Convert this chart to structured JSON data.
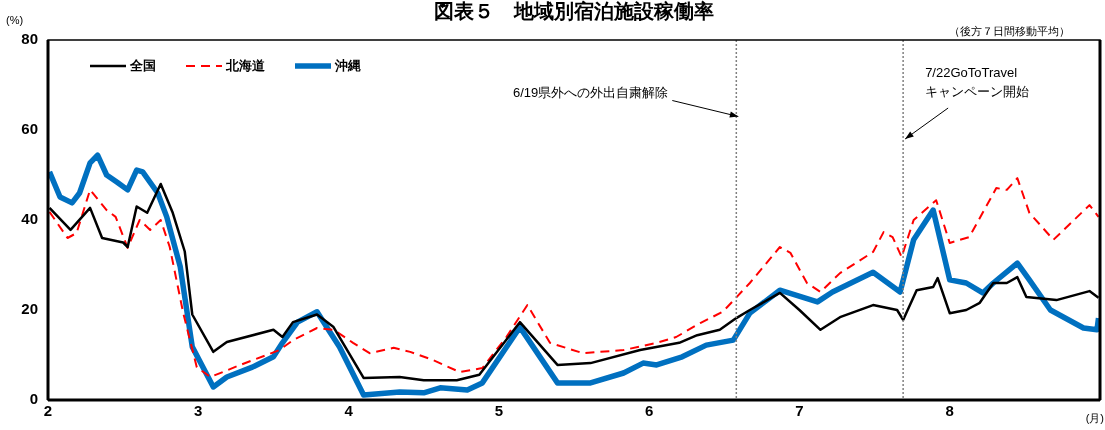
{
  "chart_data": {
    "type": "line",
    "title": "図表５　地域別宿泊施設稼働率",
    "ylabel": "(%)",
    "xlabel": "(月)",
    "xlim": [
      2,
      9
    ],
    "xticks": [
      2,
      3,
      4,
      5,
      6,
      7,
      8
    ],
    "ylim": [
      0,
      80
    ],
    "yticks": [
      0,
      20,
      40,
      60,
      80
    ],
    "grid": false,
    "legend": "top left",
    "marker": "none",
    "series": [
      {
        "name": "全国",
        "color": "#000000",
        "line_style": "solid",
        "x": [
          2.01,
          2.15,
          2.28,
          2.36,
          2.5,
          2.53,
          2.59,
          2.66,
          2.75,
          2.83,
          2.91,
          2.96,
          3.1,
          3.19,
          3.5,
          3.56,
          3.63,
          3.79,
          3.9,
          4.1,
          4.34,
          4.5,
          4.72,
          4.87,
          5.14,
          5.39,
          5.61,
          5.94,
          6.2,
          6.32,
          6.47,
          6.58,
          6.67,
          6.87,
          7.0,
          7.14,
          7.27,
          7.49,
          7.65,
          7.69,
          7.78,
          7.89,
          7.92,
          8.0,
          8.11,
          8.2,
          8.29,
          8.38,
          8.45,
          8.51,
          8.71,
          8.93,
          8.99
        ],
        "values": [
          42.7,
          37.8,
          42.7,
          36,
          35,
          34,
          43,
          41.6,
          48,
          41.6,
          33,
          19,
          10.7,
          12.9,
          15.6,
          14,
          17.3,
          19,
          16.2,
          4.9,
          5.1,
          4.4,
          4.4,
          5.6,
          17.3,
          7.8,
          8.2,
          11.1,
          12.7,
          14.4,
          15.6,
          18.2,
          20,
          23.8,
          20,
          15.6,
          18.4,
          21.1,
          20,
          17.8,
          24.4,
          25.1,
          27.1,
          19.3,
          20,
          21.6,
          26,
          26,
          27.3,
          22.9,
          22.2,
          24.2,
          22.7
        ]
      },
      {
        "name": "北海道",
        "color": "#ff0000",
        "line_style": "dashed",
        "x": [
          2.01,
          2.13,
          2.19,
          2.28,
          2.39,
          2.45,
          2.53,
          2.61,
          2.68,
          2.75,
          2.81,
          2.9,
          2.99,
          3.08,
          3.28,
          3.54,
          3.63,
          3.79,
          3.9,
          4.03,
          4.14,
          4.3,
          4.41,
          4.56,
          4.74,
          4.89,
          5.05,
          5.19,
          5.34,
          5.56,
          5.83,
          6.05,
          6.18,
          6.34,
          6.49,
          6.67,
          6.87,
          6.94,
          7.05,
          7.14,
          7.27,
          7.49,
          7.56,
          7.62,
          7.68,
          7.76,
          7.91,
          8.0,
          8.13,
          8.31,
          8.38,
          8.45,
          8.53,
          8.69,
          8.93,
          8.99
        ],
        "values": [
          41.8,
          36,
          37.1,
          46.7,
          42.2,
          40.7,
          33.8,
          40,
          37.8,
          40,
          34,
          19.3,
          7.3,
          5.1,
          7.8,
          11.1,
          13.3,
          16,
          15.6,
          12.7,
          10.4,
          11.6,
          10.7,
          8.9,
          6.2,
          7.1,
          14,
          21.1,
          12.7,
          10.4,
          11.1,
          12.7,
          14,
          17.1,
          19.6,
          26,
          34,
          32.7,
          26,
          24,
          28.2,
          32.9,
          37.3,
          36.2,
          31.8,
          40,
          44.4,
          34.9,
          36.2,
          47.1,
          46.7,
          49.3,
          41.6,
          35.6,
          43.3,
          40.7
        ]
      },
      {
        "name": "沖縄",
        "color": "#0070c0",
        "line_style": "solid",
        "x": [
          2.01,
          2.08,
          2.16,
          2.21,
          2.28,
          2.33,
          2.39,
          2.46,
          2.53,
          2.59,
          2.63,
          2.73,
          2.79,
          2.88,
          2.96,
          3.1,
          3.19,
          3.36,
          3.5,
          3.56,
          3.66,
          3.79,
          3.88,
          3.94,
          4.1,
          4.34,
          4.5,
          4.61,
          4.79,
          4.89,
          5.14,
          5.39,
          5.61,
          5.83,
          5.96,
          6.05,
          6.22,
          6.38,
          6.56,
          6.67,
          6.87,
          7.12,
          7.22,
          7.49,
          7.67,
          7.76,
          7.89,
          8.0,
          8.11,
          8.22,
          8.29,
          8.45,
          8.53,
          8.67,
          8.89,
          8.98,
          8.99
        ],
        "values": [
          50.7,
          45.1,
          43.8,
          46,
          52.7,
          54.4,
          50,
          48.4,
          46.7,
          51.1,
          50.7,
          46,
          40.7,
          29.6,
          11.8,
          2.9,
          5.1,
          7.3,
          9.6,
          12.7,
          17.3,
          19.6,
          14.9,
          11.8,
          1.1,
          1.8,
          1.6,
          2.7,
          2.2,
          3.8,
          16.2,
          3.8,
          3.8,
          6,
          8.2,
          7.8,
          9.6,
          12.2,
          13.3,
          19.3,
          24.4,
          21.8,
          24,
          28.4,
          24,
          35.6,
          42.2,
          26.7,
          26,
          23.8,
          26,
          30.4,
          26.7,
          20,
          16,
          15.6,
          18.2
        ]
      }
    ],
    "ref_lines": [
      {
        "axis": "x",
        "value": 6.58,
        "color": "#808080",
        "line_style": "dotted"
      },
      {
        "axis": "x",
        "value": 7.69,
        "color": "#808080",
        "line_style": "dotted"
      }
    ],
    "annotations": [
      {
        "text": "6/19県外への外出自粛解除",
        "x": 6.58,
        "y": 63
      },
      {
        "text": "7/22GoToTravel\nキャンペーン開始",
        "x": 7.69,
        "y": 58
      },
      "（後方７日間移動平均）"
    ]
  }
}
